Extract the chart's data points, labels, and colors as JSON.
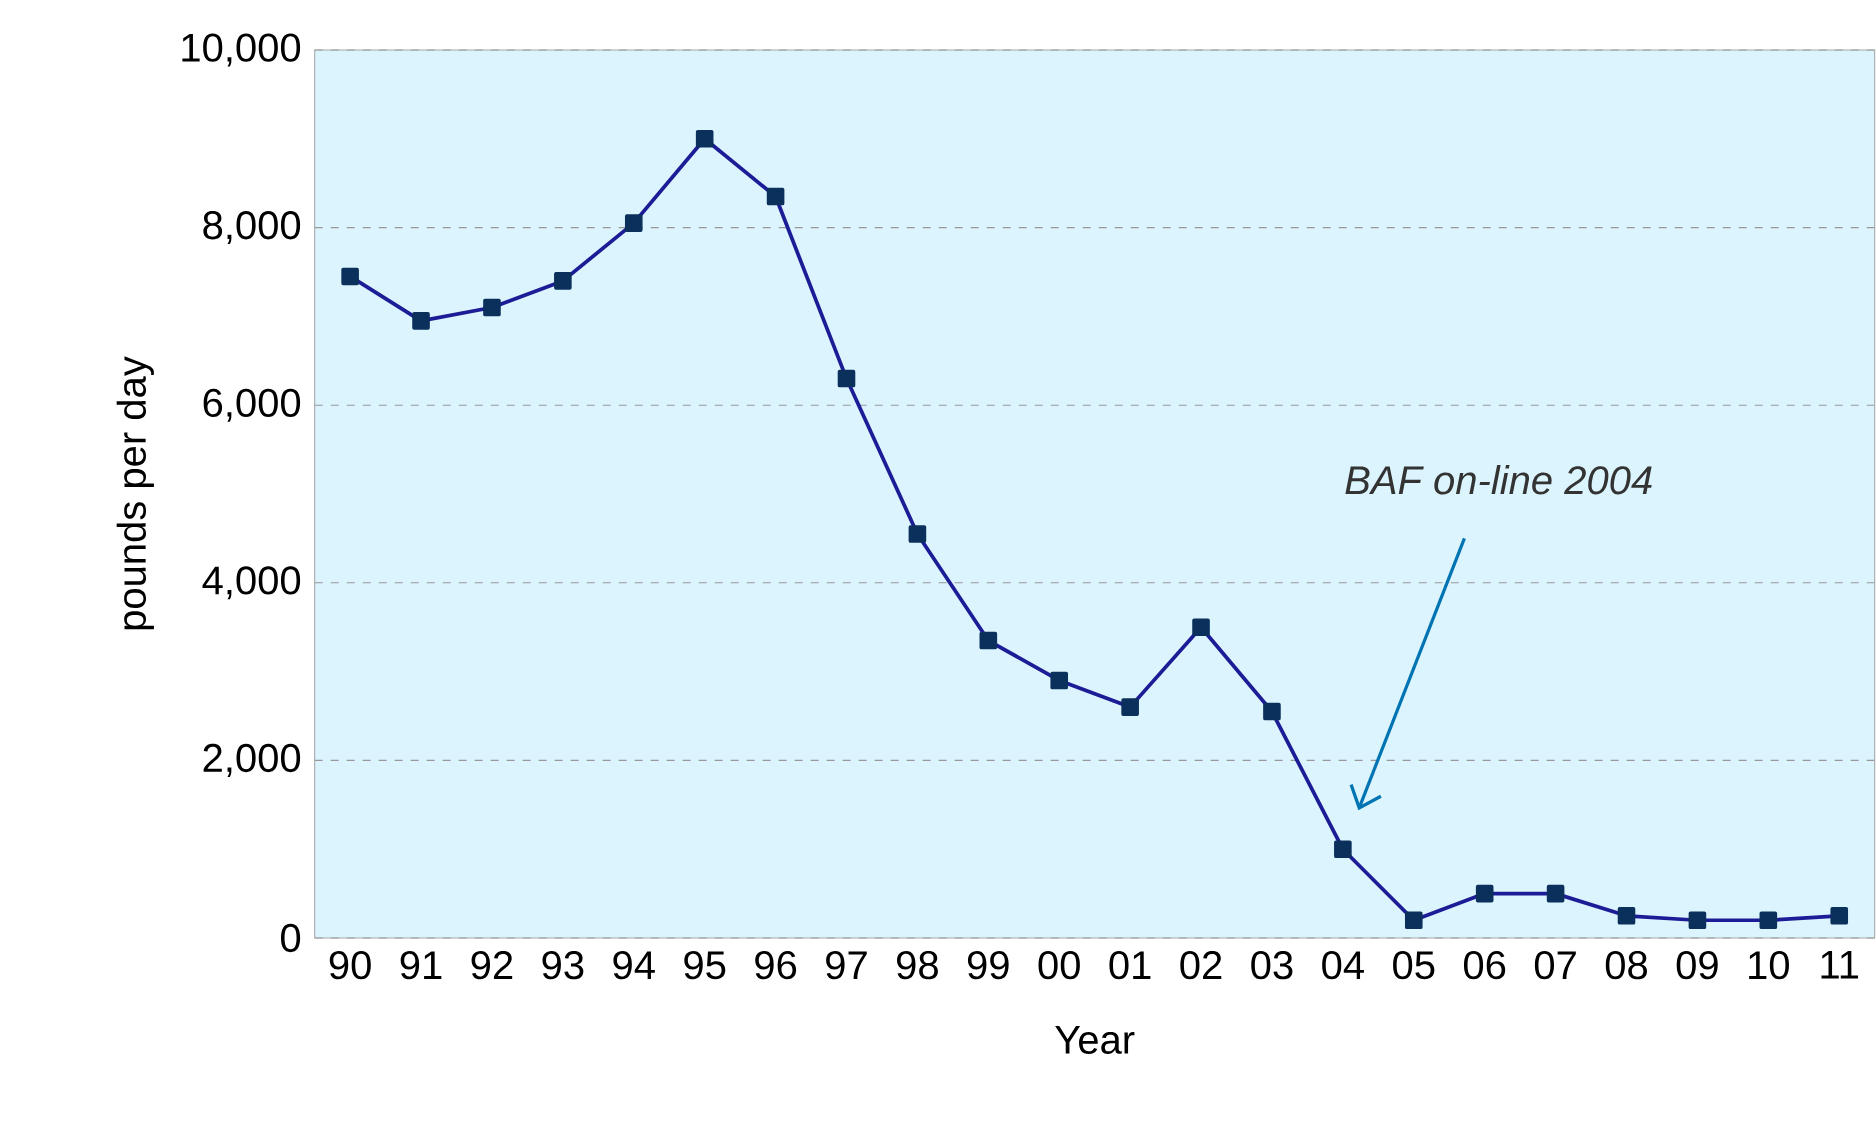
{
  "chart_data": {
    "type": "line",
    "xlabel": "Year",
    "ylabel": "pounds per day",
    "categories": [
      "90",
      "91",
      "92",
      "93",
      "94",
      "95",
      "96",
      "97",
      "98",
      "99",
      "00",
      "01",
      "02",
      "03",
      "04",
      "05",
      "06",
      "07",
      "08",
      "09",
      "10",
      "11"
    ],
    "series": [
      {
        "color": "#1c1c96",
        "values": [
          7450,
          6950,
          7100,
          7400,
          8050,
          9000,
          8350,
          6300,
          4550,
          3350,
          2900,
          2600,
          3500,
          2550,
          1000,
          200,
          500,
          500,
          250,
          200,
          200,
          250
        ]
      }
    ],
    "ylim": [
      0,
      10000
    ],
    "yticks": [
      {
        "value": 0,
        "label": "0"
      },
      {
        "value": 2000,
        "label": "2,000"
      },
      {
        "value": 4000,
        "label": "4,000"
      },
      {
        "value": 6000,
        "label": "6,000"
      },
      {
        "value": 8000,
        "label": "8,000"
      },
      {
        "value": 10000,
        "label": "10,000"
      }
    ],
    "grid": "y",
    "marker": "square",
    "line_style": "solid",
    "annotations": [
      "BAF on-line 2004"
    ]
  }
}
